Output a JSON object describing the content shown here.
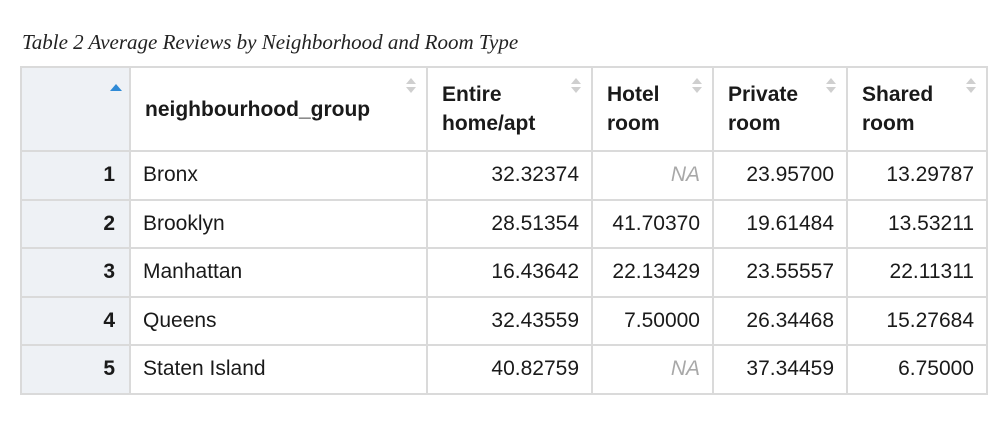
{
  "caption": "Table 2 Average Reviews by Neighborhood and Room Type",
  "columns": [
    {
      "label": "neighbourhood_group"
    },
    {
      "label": "Entire home/apt"
    },
    {
      "label": "Hotel room"
    },
    {
      "label": "Private room"
    },
    {
      "label": "Shared room"
    }
  ],
  "rows": [
    {
      "num": "1",
      "group": "Bronx",
      "entire": "32.32374",
      "hotel": "NA",
      "private": "23.95700",
      "shared": "13.29787"
    },
    {
      "num": "2",
      "group": "Brooklyn",
      "entire": "28.51354",
      "hotel": "41.70370",
      "private": "19.61484",
      "shared": "13.53211"
    },
    {
      "num": "3",
      "group": "Manhattan",
      "entire": "16.43642",
      "hotel": "22.13429",
      "private": "23.55557",
      "shared": "22.11311"
    },
    {
      "num": "4",
      "group": "Queens",
      "entire": "32.43559",
      "hotel": "7.50000",
      "private": "26.34468",
      "shared": "15.27684"
    },
    {
      "num": "5",
      "group": "Staten Island",
      "entire": "40.82759",
      "hotel": "NA",
      "private": "37.34459",
      "shared": "6.75000"
    }
  ],
  "colors": {
    "sort_active": "#2f8ad6",
    "na_text": "#a8a8a8",
    "rownum_bg": "#eef1f5",
    "border": "#dadada"
  },
  "icons": {
    "active_sort": "sort-ascending-icon",
    "column_sort": "sort-toggle-icon"
  }
}
